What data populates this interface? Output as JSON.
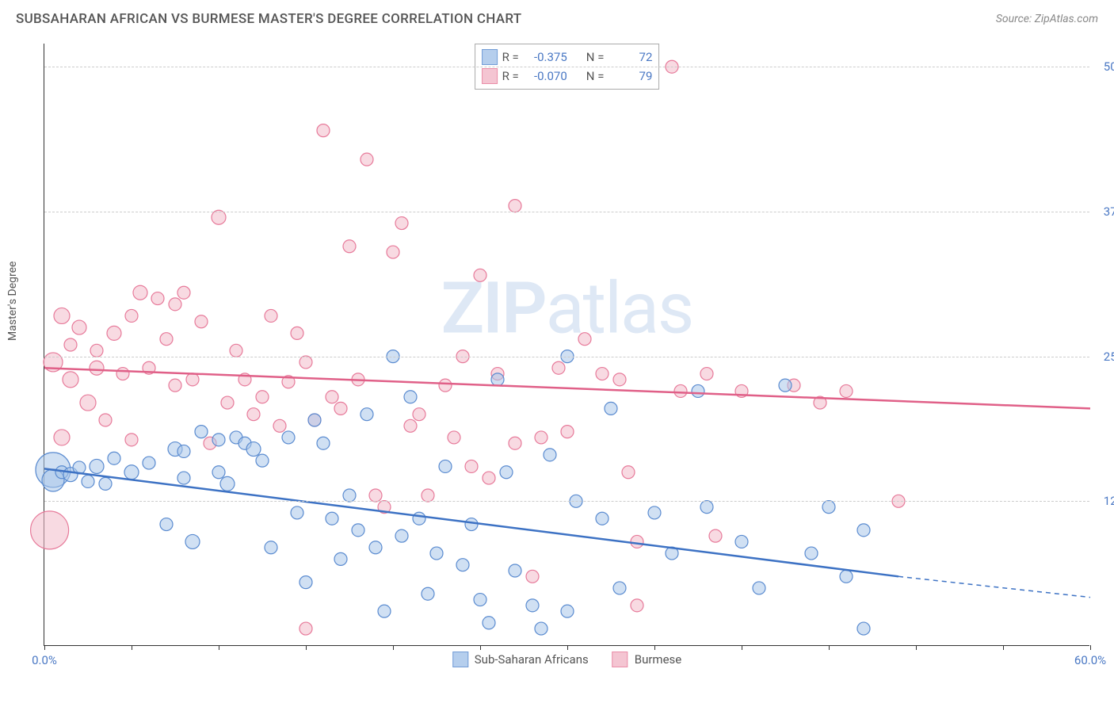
{
  "title": "SUBSAHARAN AFRICAN VS BURMESE MASTER'S DEGREE CORRELATION CHART",
  "source": "Source: ZipAtlas.com",
  "y_axis_label": "Master's Degree",
  "watermark_a": "ZIP",
  "watermark_b": "atlas",
  "chart": {
    "type": "scatter",
    "xlim": [
      0,
      60
    ],
    "ylim": [
      0,
      52
    ],
    "x_ticks": [
      0,
      5,
      10,
      15,
      20,
      25,
      30,
      35,
      40,
      45,
      50,
      55,
      60
    ],
    "x_tick_labels": {
      "0": "0.0%",
      "60": "60.0%"
    },
    "y_ticks": [
      12.5,
      25.0,
      37.5,
      50.0
    ],
    "y_tick_labels": [
      "12.5%",
      "25.0%",
      "37.5%",
      "50.0%"
    ],
    "grid_color": "#cccccc",
    "background_color": "#ffffff",
    "series": [
      {
        "name": "Sub-Saharan Africans",
        "fill": "#a9c6ea",
        "stroke": "#5a8bd0",
        "fill_opacity": 0.55,
        "line_color": "#3d72c4",
        "line_width": 2.5,
        "r_value": "-0.375",
        "n_value": "72",
        "trend": {
          "x1": 0,
          "y1": 15.3,
          "x2": 49,
          "y2": 6.0,
          "x3": 60,
          "y3": 4.2
        },
        "points": [
          {
            "x": 0.5,
            "y": 15.2,
            "r": 22
          },
          {
            "x": 0.5,
            "y": 14.3,
            "r": 14
          },
          {
            "x": 1.0,
            "y": 15.0,
            "r": 8
          },
          {
            "x": 1.5,
            "y": 14.8,
            "r": 9
          },
          {
            "x": 2.0,
            "y": 15.4,
            "r": 8
          },
          {
            "x": 2.5,
            "y": 14.2,
            "r": 8
          },
          {
            "x": 3.0,
            "y": 15.5,
            "r": 9
          },
          {
            "x": 3.5,
            "y": 14.0,
            "r": 8
          },
          {
            "x": 4.0,
            "y": 16.2,
            "r": 8
          },
          {
            "x": 5.0,
            "y": 15.0,
            "r": 9
          },
          {
            "x": 6.0,
            "y": 15.8,
            "r": 8
          },
          {
            "x": 7.0,
            "y": 10.5,
            "r": 8
          },
          {
            "x": 7.5,
            "y": 17.0,
            "r": 9
          },
          {
            "x": 8.0,
            "y": 14.5,
            "r": 8
          },
          {
            "x": 8.0,
            "y": 16.8,
            "r": 8
          },
          {
            "x": 8.5,
            "y": 9.0,
            "r": 9
          },
          {
            "x": 9.0,
            "y": 18.5,
            "r": 8
          },
          {
            "x": 10.0,
            "y": 17.8,
            "r": 8
          },
          {
            "x": 10.0,
            "y": 15.0,
            "r": 8
          },
          {
            "x": 10.5,
            "y": 14.0,
            "r": 9
          },
          {
            "x": 11.0,
            "y": 18.0,
            "r": 8
          },
          {
            "x": 11.5,
            "y": 17.5,
            "r": 8
          },
          {
            "x": 12.0,
            "y": 17.0,
            "r": 9
          },
          {
            "x": 12.5,
            "y": 16.0,
            "r": 8
          },
          {
            "x": 13.0,
            "y": 8.5,
            "r": 8
          },
          {
            "x": 14.0,
            "y": 18.0,
            "r": 8
          },
          {
            "x": 14.5,
            "y": 11.5,
            "r": 8
          },
          {
            "x": 15.0,
            "y": 5.5,
            "r": 8
          },
          {
            "x": 15.5,
            "y": 19.5,
            "r": 8
          },
          {
            "x": 16.0,
            "y": 17.5,
            "r": 8
          },
          {
            "x": 16.5,
            "y": 11.0,
            "r": 8
          },
          {
            "x": 17.0,
            "y": 7.5,
            "r": 8
          },
          {
            "x": 17.5,
            "y": 13.0,
            "r": 8
          },
          {
            "x": 18.0,
            "y": 10.0,
            "r": 8
          },
          {
            "x": 18.5,
            "y": 20.0,
            "r": 8
          },
          {
            "x": 19.0,
            "y": 8.5,
            "r": 8
          },
          {
            "x": 19.5,
            "y": 3.0,
            "r": 8
          },
          {
            "x": 20.0,
            "y": 25.0,
            "r": 8
          },
          {
            "x": 20.5,
            "y": 9.5,
            "r": 8
          },
          {
            "x": 21.0,
            "y": 21.5,
            "r": 8
          },
          {
            "x": 21.5,
            "y": 11.0,
            "r": 8
          },
          {
            "x": 22.0,
            "y": 4.5,
            "r": 8
          },
          {
            "x": 22.5,
            "y": 8.0,
            "r": 8
          },
          {
            "x": 23.0,
            "y": 15.5,
            "r": 8
          },
          {
            "x": 24.0,
            "y": 7.0,
            "r": 8
          },
          {
            "x": 24.5,
            "y": 10.5,
            "r": 8
          },
          {
            "x": 25.0,
            "y": 4.0,
            "r": 8
          },
          {
            "x": 25.5,
            "y": 2.0,
            "r": 8
          },
          {
            "x": 26.0,
            "y": 23.0,
            "r": 8
          },
          {
            "x": 26.5,
            "y": 15.0,
            "r": 8
          },
          {
            "x": 27.0,
            "y": 6.5,
            "r": 8
          },
          {
            "x": 28.0,
            "y": 3.5,
            "r": 8
          },
          {
            "x": 28.5,
            "y": 1.5,
            "r": 8
          },
          {
            "x": 29.0,
            "y": 16.5,
            "r": 8
          },
          {
            "x": 30.0,
            "y": 25.0,
            "r": 8
          },
          {
            "x": 30.5,
            "y": 12.5,
            "r": 8
          },
          {
            "x": 30.0,
            "y": 3.0,
            "r": 8
          },
          {
            "x": 32.0,
            "y": 11.0,
            "r": 8
          },
          {
            "x": 32.5,
            "y": 20.5,
            "r": 8
          },
          {
            "x": 33.0,
            "y": 5.0,
            "r": 8
          },
          {
            "x": 35.0,
            "y": 11.5,
            "r": 8
          },
          {
            "x": 36.0,
            "y": 8.0,
            "r": 8
          },
          {
            "x": 37.5,
            "y": 22.0,
            "r": 8
          },
          {
            "x": 38.0,
            "y": 12.0,
            "r": 8
          },
          {
            "x": 40.0,
            "y": 9.0,
            "r": 8
          },
          {
            "x": 41.0,
            "y": 5.0,
            "r": 8
          },
          {
            "x": 42.5,
            "y": 22.5,
            "r": 8
          },
          {
            "x": 44.0,
            "y": 8.0,
            "r": 8
          },
          {
            "x": 45.0,
            "y": 12.0,
            "r": 8
          },
          {
            "x": 46.0,
            "y": 6.0,
            "r": 8
          },
          {
            "x": 47.0,
            "y": 10.0,
            "r": 8
          },
          {
            "x": 47.0,
            "y": 1.5,
            "r": 8
          }
        ]
      },
      {
        "name": "Burmese",
        "fill": "#f3bccb",
        "stroke": "#e77a9a",
        "fill_opacity": 0.55,
        "line_color": "#e06088",
        "line_width": 2.5,
        "r_value": "-0.070",
        "n_value": "79",
        "trend": {
          "x1": 0,
          "y1": 24.0,
          "x2": 60,
          "y2": 20.5
        },
        "points": [
          {
            "x": 0.3,
            "y": 10.0,
            "r": 24
          },
          {
            "x": 0.5,
            "y": 24.5,
            "r": 12
          },
          {
            "x": 1.0,
            "y": 28.5,
            "r": 10
          },
          {
            "x": 1.0,
            "y": 18.0,
            "r": 10
          },
          {
            "x": 1.5,
            "y": 26.0,
            "r": 8
          },
          {
            "x": 1.5,
            "y": 23.0,
            "r": 10
          },
          {
            "x": 2.0,
            "y": 27.5,
            "r": 9
          },
          {
            "x": 2.5,
            "y": 21.0,
            "r": 10
          },
          {
            "x": 3.0,
            "y": 25.5,
            "r": 8
          },
          {
            "x": 3.0,
            "y": 24.0,
            "r": 9
          },
          {
            "x": 3.5,
            "y": 19.5,
            "r": 8
          },
          {
            "x": 4.0,
            "y": 27.0,
            "r": 9
          },
          {
            "x": 4.5,
            "y": 23.5,
            "r": 8
          },
          {
            "x": 5.0,
            "y": 28.5,
            "r": 8
          },
          {
            "x": 5.0,
            "y": 17.8,
            "r": 8
          },
          {
            "x": 5.5,
            "y": 30.5,
            "r": 9
          },
          {
            "x": 6.0,
            "y": 24.0,
            "r": 8
          },
          {
            "x": 6.5,
            "y": 30.0,
            "r": 8
          },
          {
            "x": 7.0,
            "y": 26.5,
            "r": 8
          },
          {
            "x": 7.5,
            "y": 29.5,
            "r": 8
          },
          {
            "x": 7.5,
            "y": 22.5,
            "r": 8
          },
          {
            "x": 8.0,
            "y": 30.5,
            "r": 8
          },
          {
            "x": 8.5,
            "y": 23.0,
            "r": 8
          },
          {
            "x": 9.0,
            "y": 28.0,
            "r": 8
          },
          {
            "x": 9.5,
            "y": 17.5,
            "r": 8
          },
          {
            "x": 10.0,
            "y": 37.0,
            "r": 9
          },
          {
            "x": 10.5,
            "y": 21.0,
            "r": 8
          },
          {
            "x": 11.0,
            "y": 25.5,
            "r": 8
          },
          {
            "x": 11.5,
            "y": 23.0,
            "r": 8
          },
          {
            "x": 12.0,
            "y": 20.0,
            "r": 8
          },
          {
            "x": 12.5,
            "y": 21.5,
            "r": 8
          },
          {
            "x": 13.0,
            "y": 28.5,
            "r": 8
          },
          {
            "x": 13.5,
            "y": 19.0,
            "r": 8
          },
          {
            "x": 14.0,
            "y": 22.8,
            "r": 8
          },
          {
            "x": 14.5,
            "y": 27.0,
            "r": 8
          },
          {
            "x": 15.0,
            "y": 24.5,
            "r": 8
          },
          {
            "x": 15.5,
            "y": 19.5,
            "r": 8
          },
          {
            "x": 16.0,
            "y": 44.5,
            "r": 8
          },
          {
            "x": 16.5,
            "y": 21.5,
            "r": 8
          },
          {
            "x": 17.0,
            "y": 20.5,
            "r": 8
          },
          {
            "x": 17.5,
            "y": 34.5,
            "r": 8
          },
          {
            "x": 18.0,
            "y": 23.0,
            "r": 8
          },
          {
            "x": 18.5,
            "y": 42.0,
            "r": 8
          },
          {
            "x": 19.0,
            "y": 13.0,
            "r": 8
          },
          {
            "x": 19.5,
            "y": 12.0,
            "r": 8
          },
          {
            "x": 20.0,
            "y": 34.0,
            "r": 8
          },
          {
            "x": 20.5,
            "y": 36.5,
            "r": 8
          },
          {
            "x": 21.0,
            "y": 19.0,
            "r": 8
          },
          {
            "x": 21.5,
            "y": 20.0,
            "r": 8
          },
          {
            "x": 22.0,
            "y": 13.0,
            "r": 8
          },
          {
            "x": 23.0,
            "y": 22.5,
            "r": 8
          },
          {
            "x": 23.5,
            "y": 18.0,
            "r": 8
          },
          {
            "x": 24.0,
            "y": 25.0,
            "r": 8
          },
          {
            "x": 24.5,
            "y": 15.5,
            "r": 8
          },
          {
            "x": 25.0,
            "y": 32.0,
            "r": 8
          },
          {
            "x": 25.5,
            "y": 14.5,
            "r": 8
          },
          {
            "x": 26.0,
            "y": 23.5,
            "r": 8
          },
          {
            "x": 27.0,
            "y": 17.5,
            "r": 8
          },
          {
            "x": 27.0,
            "y": 38.0,
            "r": 8
          },
          {
            "x": 28.0,
            "y": 6.0,
            "r": 8
          },
          {
            "x": 28.5,
            "y": 18.0,
            "r": 8
          },
          {
            "x": 29.5,
            "y": 24.0,
            "r": 8
          },
          {
            "x": 30.0,
            "y": 18.5,
            "r": 8
          },
          {
            "x": 31.0,
            "y": 26.5,
            "r": 8
          },
          {
            "x": 32.0,
            "y": 23.5,
            "r": 8
          },
          {
            "x": 33.0,
            "y": 23.0,
            "r": 8
          },
          {
            "x": 33.5,
            "y": 15.0,
            "r": 8
          },
          {
            "x": 34.0,
            "y": 9.0,
            "r": 8
          },
          {
            "x": 34.0,
            "y": 3.5,
            "r": 8
          },
          {
            "x": 15.0,
            "y": 1.5,
            "r": 8
          },
          {
            "x": 36.0,
            "y": 50.0,
            "r": 8
          },
          {
            "x": 36.5,
            "y": 22.0,
            "r": 8
          },
          {
            "x": 38.0,
            "y": 23.5,
            "r": 8
          },
          {
            "x": 40.0,
            "y": 22.0,
            "r": 8
          },
          {
            "x": 43.0,
            "y": 22.5,
            "r": 8
          },
          {
            "x": 44.5,
            "y": 21.0,
            "r": 8
          },
          {
            "x": 46.0,
            "y": 22.0,
            "r": 8
          },
          {
            "x": 49.0,
            "y": 12.5,
            "r": 8
          },
          {
            "x": 38.5,
            "y": 9.5,
            "r": 8
          }
        ]
      }
    ]
  },
  "legend_labels": {
    "r": "R =",
    "n": "N ="
  },
  "colors": {
    "text_muted": "#555555",
    "axis_value": "#4a78c4"
  }
}
